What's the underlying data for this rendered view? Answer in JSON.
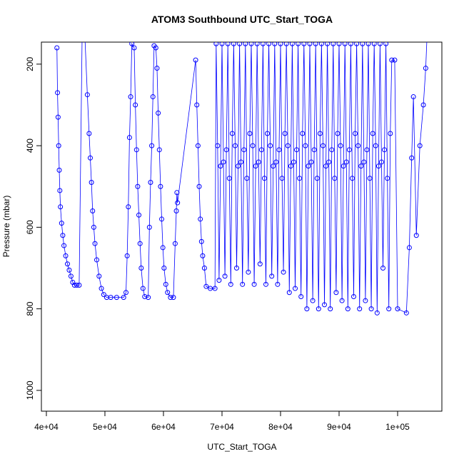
{
  "chart_data": {
    "type": "line",
    "markers": true,
    "title": "ATOM3 Southbound UTC_Start_TOGA",
    "x_label": "UTC_Start_TOGA",
    "y_label": "Pressure (mbar)",
    "color": "#0000ff",
    "xlim": [
      39150,
      107560
    ],
    "ylim": [
      1051,
      146
    ],
    "y_reversed": true,
    "xticks": [
      {
        "value": 40000,
        "label": "4e+04"
      },
      {
        "value": 50000,
        "label": "5e+04"
      },
      {
        "value": 60000,
        "label": "6e+04"
      },
      {
        "value": 70000,
        "label": "7e+04"
      },
      {
        "value": 80000,
        "label": "8e+04"
      },
      {
        "value": 90000,
        "label": "9e+04"
      },
      {
        "value": 100000,
        "label": "1e+05"
      }
    ],
    "yticks": [
      200,
      400,
      600,
      800,
      1000
    ],
    "x": [
      41800,
      41900,
      42000,
      42100,
      42200,
      42300,
      42400,
      42600,
      42800,
      43000,
      43300,
      43600,
      43900,
      44200,
      44500,
      44800,
      45200,
      45600,
      46100,
      46600,
      47000,
      47300,
      47500,
      47700,
      47900,
      48100,
      48300,
      48600,
      49000,
      49400,
      49800,
      50300,
      51000,
      52000,
      53200,
      53600,
      53800,
      54000,
      54200,
      54400,
      54600,
      55000,
      55200,
      55400,
      55600,
      55800,
      56000,
      56200,
      56500,
      56800,
      57400,
      57600,
      57800,
      58000,
      58200,
      58400,
      58700,
      58900,
      59100,
      59300,
      59500,
      59700,
      59900,
      60100,
      60400,
      60700,
      61200,
      61700,
      62000,
      62200,
      62300,
      62400,
      65500,
      65700,
      65900,
      66100,
      66300,
      66500,
      66700,
      67000,
      67300,
      68000,
      68800,
      69000,
      69250,
      69500,
      69750,
      70000,
      70250,
      70500,
      70750,
      71000,
      71250,
      71500,
      71750,
      72000,
      72250,
      72500,
      72750,
      73000,
      73250,
      73500,
      73750,
      74000,
      74250,
      74500,
      74750,
      75000,
      75250,
      75500,
      75750,
      76000,
      76250,
      76500,
      76750,
      77000,
      77250,
      77500,
      77750,
      78000,
      78250,
      78500,
      78750,
      79000,
      79250,
      79500,
      79750,
      80000,
      80250,
      80500,
      80750,
      81000,
      81250,
      81500,
      81750,
      82000,
      82250,
      82500,
      82750,
      83000,
      83250,
      83500,
      83750,
      84000,
      84250,
      84500,
      84750,
      85000,
      85250,
      85500,
      85750,
      86000,
      86250,
      86500,
      86750,
      87000,
      87250,
      87500,
      87750,
      88000,
      88250,
      88500,
      88750,
      89000,
      89250,
      89500,
      89750,
      90000,
      90250,
      90500,
      90750,
      91000,
      91250,
      91500,
      91750,
      92000,
      92250,
      92500,
      92750,
      93000,
      93250,
      93500,
      93750,
      94000,
      94250,
      94500,
      94750,
      95000,
      95250,
      95500,
      95750,
      96000,
      96250,
      96500,
      96750,
      97000,
      97250,
      97500,
      97750,
      98000,
      98250,
      98500,
      98750,
      99000,
      99500,
      100000,
      101500,
      102000,
      102400,
      102700,
      103200,
      103800,
      104400,
      104800,
      105000
    ],
    "values": [
      160,
      270,
      330,
      400,
      460,
      510,
      550,
      590,
      620,
      645,
      670,
      690,
      705,
      720,
      735,
      742,
      742,
      742,
      140,
      140,
      275,
      370,
      430,
      490,
      560,
      600,
      640,
      680,
      720,
      750,
      765,
      772,
      772,
      772,
      772,
      760,
      670,
      550,
      380,
      280,
      150,
      160,
      300,
      410,
      500,
      570,
      640,
      700,
      750,
      770,
      772,
      600,
      490,
      400,
      280,
      155,
      160,
      210,
      320,
      410,
      500,
      580,
      650,
      700,
      740,
      760,
      772,
      772,
      640,
      560,
      515,
      540,
      190,
      300,
      400,
      500,
      580,
      635,
      670,
      700,
      745,
      750,
      750,
      150,
      400,
      730,
      450,
      150,
      440,
      720,
      410,
      150,
      480,
      740,
      370,
      150,
      400,
      700,
      450,
      150,
      440,
      740,
      410,
      150,
      480,
      710,
      370,
      150,
      400,
      740,
      450,
      150,
      440,
      690,
      410,
      150,
      480,
      740,
      370,
      150,
      400,
      720,
      450,
      150,
      440,
      740,
      410,
      150,
      480,
      710,
      370,
      150,
      400,
      760,
      450,
      150,
      440,
      750,
      410,
      150,
      480,
      770,
      370,
      150,
      400,
      800,
      450,
      150,
      440,
      780,
      410,
      150,
      480,
      800,
      370,
      150,
      400,
      790,
      450,
      150,
      440,
      800,
      410,
      150,
      480,
      760,
      370,
      150,
      400,
      780,
      450,
      150,
      440,
      800,
      410,
      150,
      480,
      770,
      370,
      150,
      400,
      800,
      450,
      150,
      440,
      780,
      410,
      150,
      480,
      800,
      370,
      150,
      400,
      810,
      450,
      150,
      440,
      700,
      410,
      150,
      480,
      800,
      370,
      190,
      190,
      800,
      810,
      650,
      430,
      280,
      620,
      400,
      300,
      210,
      140
    ]
  }
}
